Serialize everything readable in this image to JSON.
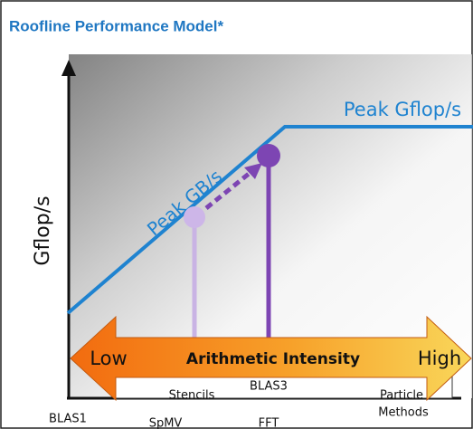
{
  "header": {
    "title": "Roofline Performance Model*"
  },
  "axes": {
    "y_label": "Gflop/s"
  },
  "roofline": {
    "compute_label": "Peak Gflop/s",
    "bandwidth_label": "Peak GB/s"
  },
  "intensity_arrow": {
    "low": "Low",
    "label": "Arithmetic Intensity",
    "high": "High"
  },
  "kernels": [
    "Stencils",
    "BLAS3",
    "Particle",
    "Methods",
    "BLAS1",
    "SpMV",
    "FFT"
  ]
}
